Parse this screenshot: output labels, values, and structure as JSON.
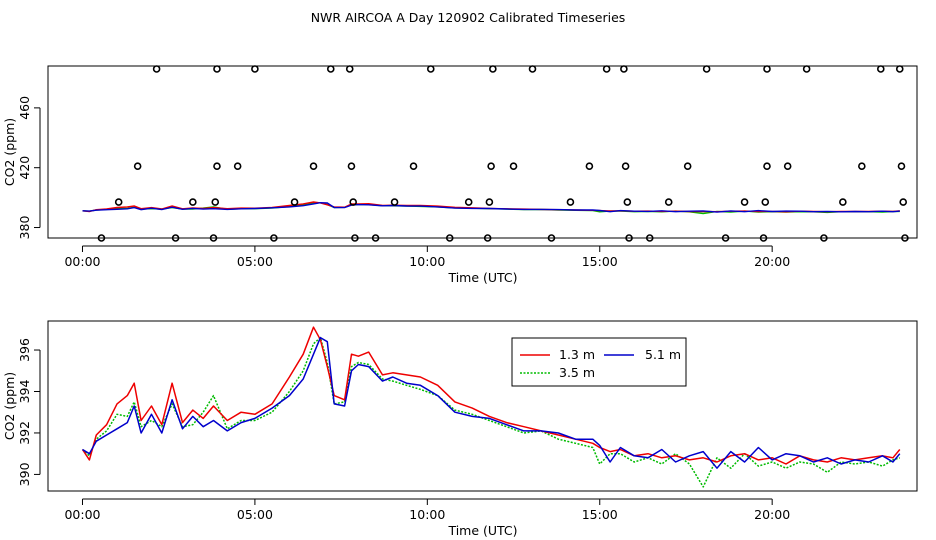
{
  "title": "NWR AIRCOA A  Day 120902  Calibrated Timeseries",
  "chart_data": [
    {
      "type": "scatter",
      "name": "top-panel",
      "xlabel": "Time (UTC)",
      "ylabel": "CO2 (ppm)",
      "xlim": [
        -1,
        24.2
      ],
      "ylim": [
        373,
        488
      ],
      "xticks": [
        0,
        5,
        10,
        15,
        20
      ],
      "xtick_labels": [
        "00:00",
        "05:00",
        "10:00",
        "15:00",
        "20:00"
      ],
      "yticks": [
        380,
        420,
        460
      ],
      "ytick_labels": [
        "380",
        "420",
        "460"
      ],
      "colors": {
        "1.3 m": "#ee0000",
        "3.5 m": "#00bb00",
        "5.1 m": "#0000cc",
        "points": "#000000"
      },
      "circle_points": [
        {
          "x": 0.55,
          "y": 373
        },
        {
          "x": 1.05,
          "y": 397
        },
        {
          "x": 1.6,
          "y": 421
        },
        {
          "x": 2.15,
          "y": 486
        },
        {
          "x": 2.7,
          "y": 373
        },
        {
          "x": 3.2,
          "y": 397
        },
        {
          "x": 3.8,
          "y": 373
        },
        {
          "x": 3.85,
          "y": 397
        },
        {
          "x": 3.9,
          "y": 421
        },
        {
          "x": 3.9,
          "y": 486
        },
        {
          "x": 4.5,
          "y": 421
        },
        {
          "x": 5.0,
          "y": 486
        },
        {
          "x": 5.55,
          "y": 373
        },
        {
          "x": 6.15,
          "y": 397
        },
        {
          "x": 6.7,
          "y": 421
        },
        {
          "x": 7.2,
          "y": 486
        },
        {
          "x": 7.75,
          "y": 486
        },
        {
          "x": 7.8,
          "y": 421
        },
        {
          "x": 7.85,
          "y": 397
        },
        {
          "x": 7.9,
          "y": 373
        },
        {
          "x": 8.5,
          "y": 373
        },
        {
          "x": 9.05,
          "y": 397
        },
        {
          "x": 9.6,
          "y": 421
        },
        {
          "x": 10.1,
          "y": 486
        },
        {
          "x": 10.65,
          "y": 373
        },
        {
          "x": 11.2,
          "y": 397
        },
        {
          "x": 11.75,
          "y": 373
        },
        {
          "x": 11.8,
          "y": 397
        },
        {
          "x": 11.85,
          "y": 421
        },
        {
          "x": 11.9,
          "y": 486
        },
        {
          "x": 12.5,
          "y": 421
        },
        {
          "x": 13.05,
          "y": 486
        },
        {
          "x": 13.6,
          "y": 373
        },
        {
          "x": 14.15,
          "y": 397
        },
        {
          "x": 14.7,
          "y": 421
        },
        {
          "x": 15.2,
          "y": 486
        },
        {
          "x": 15.7,
          "y": 486
        },
        {
          "x": 15.75,
          "y": 421
        },
        {
          "x": 15.8,
          "y": 397
        },
        {
          "x": 15.85,
          "y": 373
        },
        {
          "x": 16.45,
          "y": 373
        },
        {
          "x": 17.0,
          "y": 397
        },
        {
          "x": 17.55,
          "y": 421
        },
        {
          "x": 18.1,
          "y": 486
        },
        {
          "x": 18.65,
          "y": 373
        },
        {
          "x": 19.2,
          "y": 397
        },
        {
          "x": 19.75,
          "y": 373
        },
        {
          "x": 19.8,
          "y": 397
        },
        {
          "x": 19.85,
          "y": 421
        },
        {
          "x": 19.85,
          "y": 486
        },
        {
          "x": 20.45,
          "y": 421
        },
        {
          "x": 21.0,
          "y": 486
        },
        {
          "x": 21.5,
          "y": 373
        },
        {
          "x": 22.05,
          "y": 397
        },
        {
          "x": 22.6,
          "y": 421
        },
        {
          "x": 23.15,
          "y": 486
        },
        {
          "x": 23.7,
          "y": 486
        },
        {
          "x": 23.75,
          "y": 421
        },
        {
          "x": 23.8,
          "y": 397
        },
        {
          "x": 23.85,
          "y": 373
        }
      ]
    },
    {
      "type": "line",
      "name": "bottom-panel",
      "xlabel": "Time (UTC)",
      "ylabel": "CO2 (ppm)",
      "xlim": [
        -1,
        24.2
      ],
      "ylim": [
        389.2,
        397.4
      ],
      "xticks": [
        0,
        5,
        10,
        15,
        20
      ],
      "xtick_labels": [
        "00:00",
        "05:00",
        "10:00",
        "15:00",
        "20:00"
      ],
      "yticks": [
        390,
        392,
        394,
        396
      ],
      "ytick_labels": [
        "390",
        "392",
        "394",
        "396"
      ],
      "legend": {
        "position": "top-center",
        "entries": [
          "1.3 m",
          "3.5 m",
          "5.1 m"
        ]
      },
      "series": [
        {
          "name": "1.3 m",
          "color": "#ee0000",
          "x": [
            0,
            0.2,
            0.4,
            0.7,
            1.0,
            1.3,
            1.5,
            1.7,
            2.0,
            2.3,
            2.6,
            2.9,
            3.2,
            3.5,
            3.8,
            4.2,
            4.6,
            5.0,
            5.5,
            6.0,
            6.4,
            6.7,
            6.9,
            7.1,
            7.3,
            7.6,
            7.8,
            8.0,
            8.3,
            8.7,
            9.0,
            9.4,
            9.8,
            10.3,
            10.8,
            11.3,
            11.8,
            12.3,
            12.8,
            13.3,
            13.8,
            14.3,
            14.8,
            15.0,
            15.3,
            15.6,
            16.0,
            16.4,
            16.8,
            17.2,
            17.6,
            18.0,
            18.4,
            18.8,
            19.2,
            19.6,
            20.0,
            20.4,
            20.8,
            21.2,
            21.6,
            22.0,
            22.4,
            22.8,
            23.2,
            23.5,
            23.7
          ],
          "y": [
            391.2,
            390.7,
            391.9,
            392.4,
            393.4,
            393.8,
            394.4,
            392.6,
            393.3,
            392.4,
            394.4,
            392.5,
            393.1,
            392.7,
            393.3,
            392.6,
            393.0,
            392.9,
            393.4,
            394.7,
            395.8,
            397.1,
            396.5,
            395.2,
            393.8,
            393.6,
            395.8,
            395.7,
            395.9,
            394.8,
            394.9,
            394.8,
            394.7,
            394.3,
            393.5,
            393.2,
            392.8,
            392.5,
            392.3,
            392.1,
            391.9,
            391.7,
            391.5,
            391.3,
            391.1,
            391.2,
            390.9,
            391.0,
            390.8,
            390.9,
            390.7,
            390.8,
            390.6,
            390.9,
            391.0,
            390.7,
            390.8,
            390.5,
            390.9,
            390.7,
            390.6,
            390.8,
            390.7,
            390.8,
            390.9,
            390.8,
            391.2
          ]
        },
        {
          "name": "3.5 m",
          "color": "#00bb00",
          "x": [
            0,
            0.2,
            0.4,
            0.7,
            1.0,
            1.3,
            1.5,
            1.7,
            2.0,
            2.3,
            2.6,
            2.9,
            3.2,
            3.5,
            3.8,
            4.2,
            4.6,
            5.0,
            5.5,
            6.0,
            6.4,
            6.7,
            6.9,
            7.1,
            7.3,
            7.6,
            7.8,
            8.0,
            8.3,
            8.7,
            9.0,
            9.4,
            9.8,
            10.3,
            10.8,
            11.3,
            11.8,
            12.3,
            12.8,
            13.3,
            13.8,
            14.3,
            14.8,
            15.0,
            15.3,
            15.6,
            16.0,
            16.4,
            16.8,
            17.2,
            17.6,
            18.0,
            18.4,
            18.8,
            19.2,
            19.6,
            20.0,
            20.4,
            20.8,
            21.2,
            21.6,
            22.0,
            22.4,
            22.8,
            23.2,
            23.5,
            23.7
          ],
          "y": [
            391.2,
            390.9,
            391.7,
            392.1,
            392.9,
            392.8,
            393.5,
            392.3,
            392.6,
            392.3,
            393.4,
            392.3,
            392.4,
            393.0,
            393.8,
            392.2,
            392.6,
            392.6,
            393.0,
            394.0,
            395.0,
            396.3,
            396.6,
            395.4,
            393.4,
            393.5,
            395.2,
            395.4,
            395.3,
            394.6,
            394.5,
            394.3,
            394.1,
            393.8,
            393.1,
            392.9,
            392.6,
            392.3,
            392.0,
            392.1,
            391.7,
            391.5,
            391.3,
            390.5,
            391.0,
            391.0,
            390.6,
            390.8,
            390.5,
            391.0,
            390.5,
            389.4,
            390.8,
            390.3,
            391.0,
            390.4,
            390.6,
            390.3,
            390.6,
            390.5,
            390.1,
            390.6,
            390.5,
            390.6,
            390.4,
            390.7,
            390.8
          ]
        },
        {
          "name": "5.1 m",
          "color": "#0000cc",
          "x": [
            0,
            0.2,
            0.4,
            0.7,
            1.0,
            1.3,
            1.5,
            1.7,
            2.0,
            2.3,
            2.6,
            2.9,
            3.2,
            3.5,
            3.8,
            4.2,
            4.6,
            5.0,
            5.5,
            6.0,
            6.4,
            6.7,
            6.9,
            7.1,
            7.3,
            7.6,
            7.8,
            8.0,
            8.3,
            8.7,
            9.0,
            9.4,
            9.8,
            10.3,
            10.8,
            11.3,
            11.8,
            12.3,
            12.8,
            13.3,
            13.8,
            14.3,
            14.8,
            15.0,
            15.3,
            15.6,
            16.0,
            16.4,
            16.8,
            17.2,
            17.6,
            18.0,
            18.4,
            18.8,
            19.2,
            19.6,
            20.0,
            20.4,
            20.8,
            21.2,
            21.6,
            22.0,
            22.4,
            22.8,
            23.2,
            23.5,
            23.7
          ],
          "y": [
            391.2,
            391.0,
            391.6,
            391.9,
            392.2,
            392.5,
            393.3,
            392.0,
            392.9,
            392.0,
            393.6,
            392.2,
            392.8,
            392.3,
            392.6,
            392.1,
            392.5,
            392.7,
            393.2,
            393.8,
            394.6,
            395.8,
            396.6,
            396.4,
            393.4,
            393.3,
            395.0,
            395.3,
            395.2,
            394.5,
            394.7,
            394.4,
            394.3,
            393.8,
            393.0,
            392.8,
            392.7,
            392.4,
            392.1,
            392.1,
            392.0,
            391.7,
            391.7,
            391.4,
            390.6,
            391.3,
            390.9,
            390.8,
            391.2,
            390.6,
            390.9,
            391.1,
            390.3,
            391.1,
            390.6,
            391.3,
            390.7,
            391.0,
            390.9,
            390.6,
            390.8,
            390.5,
            390.7,
            390.6,
            390.9,
            390.6,
            391.0
          ]
        }
      ]
    }
  ]
}
